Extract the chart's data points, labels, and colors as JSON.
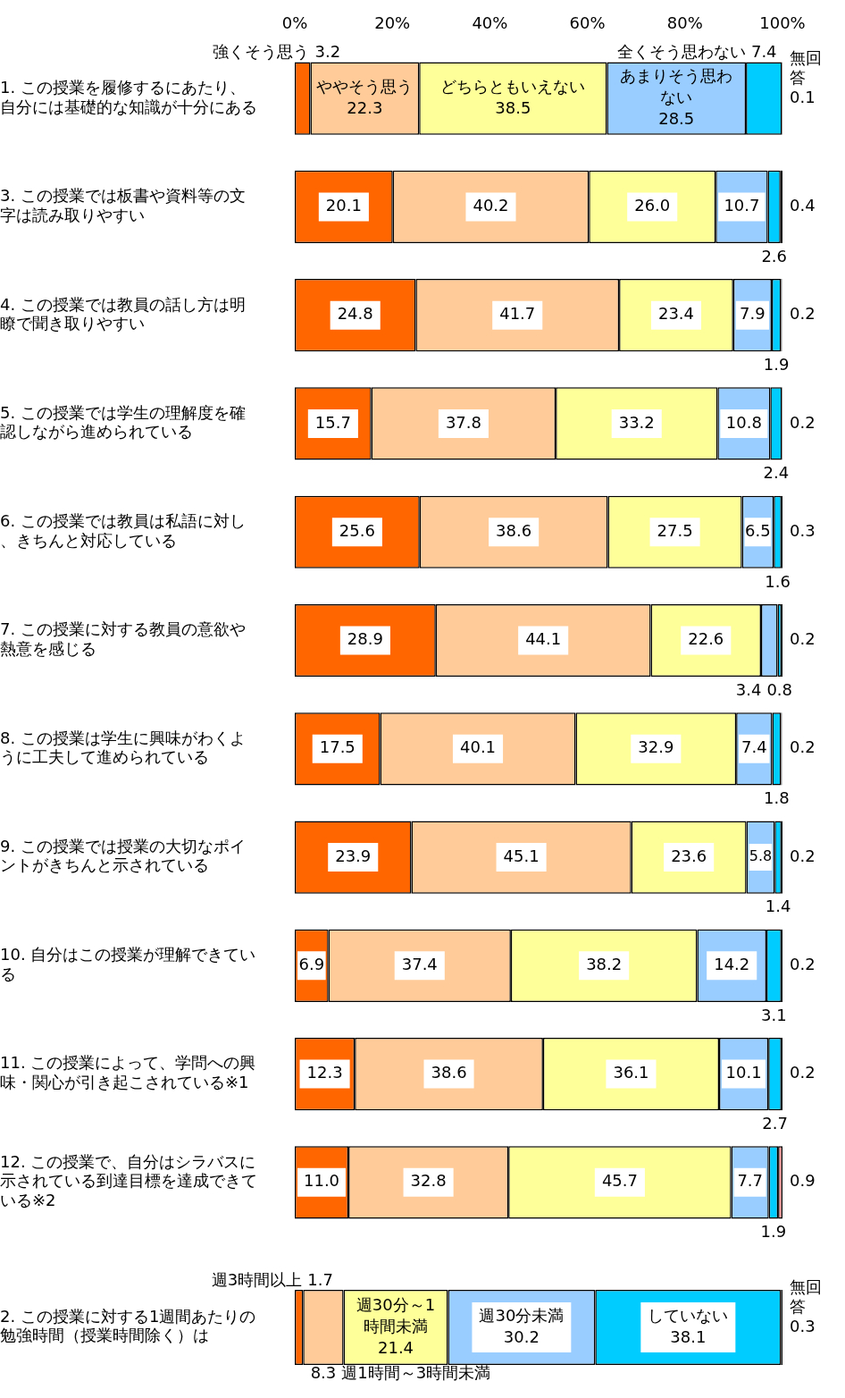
{
  "chart_data": [
    {
      "type": "bar",
      "orientation": "horizontal",
      "stacked": true,
      "categories": [
        "1. この授業を履修するにあたり、自分には基礎的な知識が十分にある",
        "3. この授業では板書や資料等の文字は読み取りやすい",
        "4. この授業では教員の話し方は明瞭で聞き取りやすい",
        "5. この授業では学生の理解度を確認しながら進められている",
        "6. この授業では教員は私語に対し、きちんと対応している",
        "7. この授業に対する教員の意欲や熱意を感じる",
        "8. この授業は学生に興味がわくように工夫して進められている",
        "9. この授業では授業の大切なポイントがきちんと示されている",
        "10. 自分はこの授業が理解できている",
        "11. この授業によって、学問への興味・関心が引き起こされている※1",
        "12. この授業で、自分はシラバスに示されている到達目標を達成できている※2"
      ],
      "series": [
        {
          "name": "強くそう思う",
          "color": "#ff6600",
          "values": [
            3.2,
            20.1,
            24.8,
            15.7,
            25.6,
            28.9,
            17.5,
            23.9,
            6.9,
            12.3,
            11.0
          ],
          "value_labels": [
            "3.2",
            "20.1",
            "24.8",
            "15.7",
            "25.6",
            "28.9",
            "17.5",
            "23.9",
            "6.9",
            "12.3",
            "11.0"
          ]
        },
        {
          "name": "ややそう思う",
          "color": "#ffcc99",
          "values": [
            22.3,
            40.2,
            41.7,
            37.8,
            38.6,
            44.1,
            40.1,
            45.1,
            37.4,
            38.6,
            32.8
          ],
          "value_labels": [
            "22.3",
            "40.2",
            "41.7",
            "37.8",
            "38.6",
            "44.1",
            "40.1",
            "45.1",
            "37.4",
            "38.6",
            "32.8"
          ]
        },
        {
          "name": "どちらともいえない",
          "color": "#ffff99",
          "values": [
            38.5,
            26.0,
            23.4,
            33.2,
            27.5,
            22.6,
            32.9,
            23.6,
            38.2,
            36.1,
            45.7
          ],
          "value_labels": [
            "38.5",
            "26.0",
            "23.4",
            "33.2",
            "27.5",
            "22.6",
            "32.9",
            "23.6",
            "38.2",
            "36.1",
            "45.7"
          ]
        },
        {
          "name": "あまりそう思わない",
          "color": "#99ccff",
          "values": [
            28.5,
            10.7,
            7.9,
            10.8,
            6.5,
            3.4,
            7.4,
            5.8,
            14.2,
            10.1,
            7.7
          ],
          "value_labels": [
            "28.5",
            "10.7",
            "7.9",
            "10.8",
            "6.5",
            "3.4",
            "7.4",
            "5.8",
            "14.2",
            "10.1",
            "7.7"
          ]
        },
        {
          "name": "全くそう思わない",
          "color": "#00ccff",
          "values": [
            7.4,
            2.6,
            1.9,
            2.4,
            1.6,
            0.8,
            1.8,
            1.4,
            3.1,
            2.7,
            1.9
          ],
          "value_labels": [
            "7.4",
            "2.6",
            "1.9",
            "2.4",
            "1.6",
            "0.8",
            "1.8",
            "1.4",
            "3.1",
            "2.7",
            "1.9"
          ]
        },
        {
          "name": "無回答",
          "color": "#000000",
          "colors": [
            null,
            null,
            null,
            null,
            null,
            null,
            null,
            null,
            null,
            null,
            "#ff9999"
          ],
          "values": [
            0.1,
            0.4,
            0.2,
            0.2,
            0.3,
            0.2,
            0.2,
            0.2,
            0.2,
            0.2,
            0.9
          ],
          "value_labels": [
            "0.1",
            "0.4",
            "0.2",
            "0.2",
            "0.3",
            "0.2",
            "0.2",
            "0.2",
            "0.2",
            "0.2",
            "0.9"
          ]
        }
      ],
      "xlim": [
        0,
        100
      ],
      "xticks": [
        {
          "value": 0,
          "label": "0%"
        },
        {
          "value": 20,
          "label": "20%"
        },
        {
          "value": 40,
          "label": "40%"
        },
        {
          "value": 60,
          "label": "60%"
        },
        {
          "value": 80,
          "label": "80%"
        },
        {
          "value": 100,
          "label": "100%"
        }
      ]
    },
    {
      "type": "bar",
      "orientation": "horizontal",
      "stacked": true,
      "tick_labels": "y",
      "categories": [
        "2. この授業に対する1週間あたりの勉強時間（授業時間除く）は"
      ],
      "series": [
        {
          "name": "週3時間以上",
          "color": "#ff6600",
          "values": [
            1.7
          ],
          "value_labels": [
            "1.7"
          ]
        },
        {
          "name": "週1時間～3時間未満",
          "color": "#ffcc99",
          "values": [
            8.3
          ],
          "value_labels": [
            "8.3"
          ]
        },
        {
          "name": "週30分～1時間未満",
          "color": "#ffff99",
          "values": [
            21.4
          ],
          "value_labels": [
            "21.4"
          ]
        },
        {
          "name": "週30分未満",
          "color": "#99ccff",
          "values": [
            30.2
          ],
          "value_labels": [
            "30.2"
          ]
        },
        {
          "name": "していない",
          "color": "#00ccff",
          "values": [
            38.1
          ],
          "value_labels": [
            "38.1"
          ]
        },
        {
          "name": "無回答",
          "color": "#000000",
          "values": [
            0.3
          ],
          "value_labels": [
            "0.3"
          ]
        }
      ],
      "xlim": [
        0,
        100
      ]
    }
  ]
}
